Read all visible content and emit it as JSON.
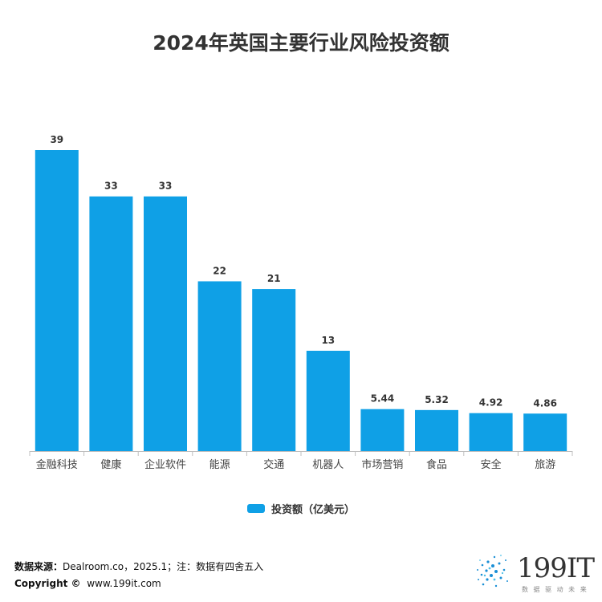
{
  "chart_data": {
    "type": "bar",
    "title": "2024年英国主要行业风险投资额",
    "categories": [
      "金融科技",
      "健康",
      "企业软件",
      "能源",
      "交通",
      "机器人",
      "市场营销",
      "食品",
      "安全",
      "旅游"
    ],
    "values": [
      39,
      33,
      33,
      22,
      21,
      13,
      5.44,
      5.32,
      4.92,
      4.86
    ],
    "value_labels": [
      "39",
      "33",
      "33",
      "22",
      "21",
      "13",
      "5.44",
      "5.32",
      "4.92",
      "4.86"
    ],
    "series_name": "投资额（亿美元）",
    "ylim": [
      0,
      39
    ],
    "bar_color": "#0fa0e6",
    "xlabel": "",
    "ylabel": ""
  },
  "footer": {
    "source_label": "数据来源：",
    "source_text": "Dealroom.co，2025.1；注：数据有四舍五入",
    "copyright_label": "Copyright ©",
    "copyright_text": "www.199it.com"
  },
  "logo": {
    "brand": "199IT",
    "tagline": "数 据 驱 动 未 来"
  }
}
